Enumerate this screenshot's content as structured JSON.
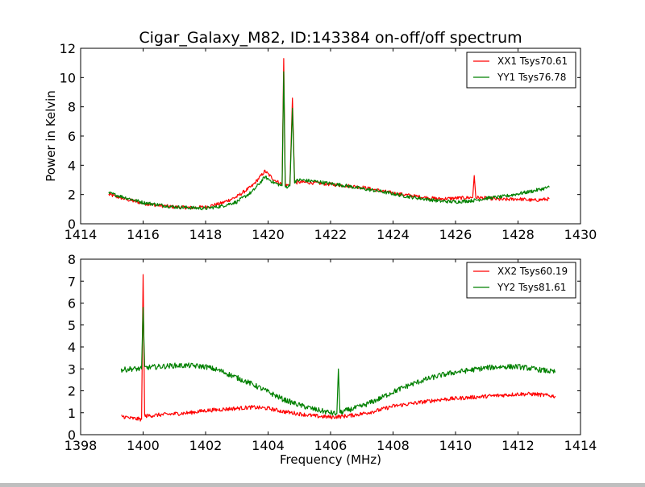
{
  "chart_data": [
    {
      "type": "line",
      "title": "Cigar_Galaxy_M82, ID:143384 on-off/off spectrum",
      "xlabel": "",
      "ylabel": "Power in Kelvin",
      "xlim": [
        1414,
        1430
      ],
      "ylim": [
        0,
        12
      ],
      "xticks": [
        1414,
        1416,
        1418,
        1420,
        1422,
        1424,
        1426,
        1428,
        1430
      ],
      "yticks": [
        0,
        2,
        4,
        6,
        8,
        10,
        12
      ],
      "xtick_labels": [
        "1414",
        "1416",
        "1418",
        "1420",
        "1422",
        "1424",
        "1426",
        "1428",
        "1430"
      ],
      "ytick_labels": [
        "0",
        "2",
        "4",
        "6",
        "8",
        "10",
        "12"
      ],
      "grid": false,
      "legend": "top-right",
      "series": [
        {
          "name": "XX1 Tsys70.61",
          "color": "#ff0000",
          "noise": 0.12,
          "x": [
            1414.9,
            1415.5,
            1416.0,
            1416.5,
            1417.0,
            1417.5,
            1418.0,
            1418.5,
            1419.0,
            1419.5,
            1419.9,
            1420.2,
            1420.45,
            1420.5,
            1420.55,
            1420.7,
            1420.78,
            1420.85,
            1421.0,
            1421.5,
            1422.0,
            1422.5,
            1423.0,
            1423.5,
            1424.0,
            1424.5,
            1425.0,
            1425.5,
            1426.0,
            1426.55,
            1426.6,
            1426.65,
            1427.0,
            1427.5,
            1428.0,
            1428.5,
            1429.0
          ],
          "y": [
            2.0,
            1.65,
            1.4,
            1.25,
            1.15,
            1.1,
            1.15,
            1.4,
            1.85,
            2.6,
            3.6,
            3.0,
            2.7,
            11.3,
            2.6,
            2.7,
            8.6,
            2.8,
            2.85,
            2.8,
            2.7,
            2.6,
            2.5,
            2.3,
            2.1,
            1.95,
            1.8,
            1.7,
            1.75,
            1.8,
            3.3,
            1.8,
            1.75,
            1.65,
            1.7,
            1.6,
            1.7
          ]
        },
        {
          "name": "YY1 Tsys76.78",
          "color": "#008000",
          "noise": 0.12,
          "x": [
            1414.9,
            1415.5,
            1416.0,
            1416.5,
            1417.0,
            1417.5,
            1418.0,
            1418.5,
            1419.0,
            1419.5,
            1419.9,
            1420.2,
            1420.45,
            1420.5,
            1420.55,
            1420.7,
            1420.78,
            1420.85,
            1421.0,
            1421.5,
            1422.0,
            1422.5,
            1423.0,
            1423.5,
            1424.0,
            1424.5,
            1425.0,
            1425.5,
            1426.0,
            1426.6,
            1427.0,
            1427.5,
            1428.0,
            1428.5,
            1429.0
          ],
          "y": [
            2.1,
            1.75,
            1.45,
            1.3,
            1.15,
            1.1,
            1.05,
            1.2,
            1.5,
            2.2,
            3.2,
            2.8,
            2.6,
            10.4,
            2.5,
            2.6,
            7.9,
            2.9,
            3.0,
            2.9,
            2.75,
            2.6,
            2.4,
            2.25,
            2.05,
            1.85,
            1.7,
            1.55,
            1.5,
            1.6,
            1.75,
            1.85,
            2.05,
            2.25,
            2.5
          ]
        }
      ]
    },
    {
      "type": "line",
      "title": "",
      "xlabel": "Frequency (MHz)",
      "ylabel": "",
      "xlim": [
        1398,
        1414
      ],
      "ylim": [
        0,
        8
      ],
      "xticks": [
        1398,
        1400,
        1402,
        1404,
        1406,
        1408,
        1410,
        1412,
        1414
      ],
      "yticks": [
        0,
        1,
        2,
        3,
        4,
        5,
        6,
        7,
        8
      ],
      "xtick_labels": [
        "1398",
        "1400",
        "1402",
        "1404",
        "1406",
        "1408",
        "1410",
        "1412",
        "1414"
      ],
      "ytick_labels": [
        "0",
        "1",
        "2",
        "3",
        "4",
        "5",
        "6",
        "7",
        "8"
      ],
      "grid": false,
      "legend": "top-right",
      "series": [
        {
          "name": "XX2 Tsys60.19",
          "color": "#ff0000",
          "noise": 0.09,
          "x": [
            1399.3,
            1399.6,
            1399.95,
            1400.0,
            1400.05,
            1400.5,
            1401.0,
            1401.5,
            1402.0,
            1402.5,
            1403.0,
            1403.5,
            1404.0,
            1404.5,
            1405.0,
            1405.5,
            1406.0,
            1406.5,
            1407.0,
            1407.5,
            1408.0,
            1408.5,
            1409.0,
            1409.5,
            1410.0,
            1410.5,
            1411.0,
            1411.5,
            1412.0,
            1412.5,
            1413.2
          ],
          "y": [
            0.85,
            0.75,
            0.7,
            7.3,
            0.85,
            0.9,
            0.95,
            1.0,
            1.1,
            1.15,
            1.2,
            1.25,
            1.2,
            1.05,
            0.95,
            0.85,
            0.8,
            0.85,
            0.95,
            1.1,
            1.3,
            1.4,
            1.5,
            1.6,
            1.65,
            1.7,
            1.75,
            1.8,
            1.85,
            1.85,
            1.75
          ]
        },
        {
          "name": "YY2 Tsys81.61",
          "color": "#008000",
          "noise": 0.12,
          "x": [
            1399.3,
            1399.6,
            1399.95,
            1400.0,
            1400.05,
            1400.5,
            1401.0,
            1401.5,
            1402.0,
            1402.5,
            1403.0,
            1403.5,
            1404.0,
            1404.5,
            1405.0,
            1405.5,
            1406.0,
            1406.2,
            1406.25,
            1406.3,
            1406.5,
            1407.0,
            1407.5,
            1408.0,
            1408.5,
            1409.0,
            1409.5,
            1410.0,
            1410.5,
            1411.0,
            1411.5,
            1412.0,
            1412.5,
            1413.2
          ],
          "y": [
            2.95,
            3.0,
            3.0,
            5.8,
            3.05,
            3.1,
            3.15,
            3.15,
            3.1,
            2.9,
            2.6,
            2.3,
            1.95,
            1.6,
            1.35,
            1.15,
            1.0,
            0.95,
            3.0,
            1.0,
            1.1,
            1.3,
            1.6,
            1.95,
            2.25,
            2.5,
            2.7,
            2.85,
            2.95,
            3.05,
            3.1,
            3.1,
            3.0,
            2.85
          ]
        }
      ]
    }
  ]
}
